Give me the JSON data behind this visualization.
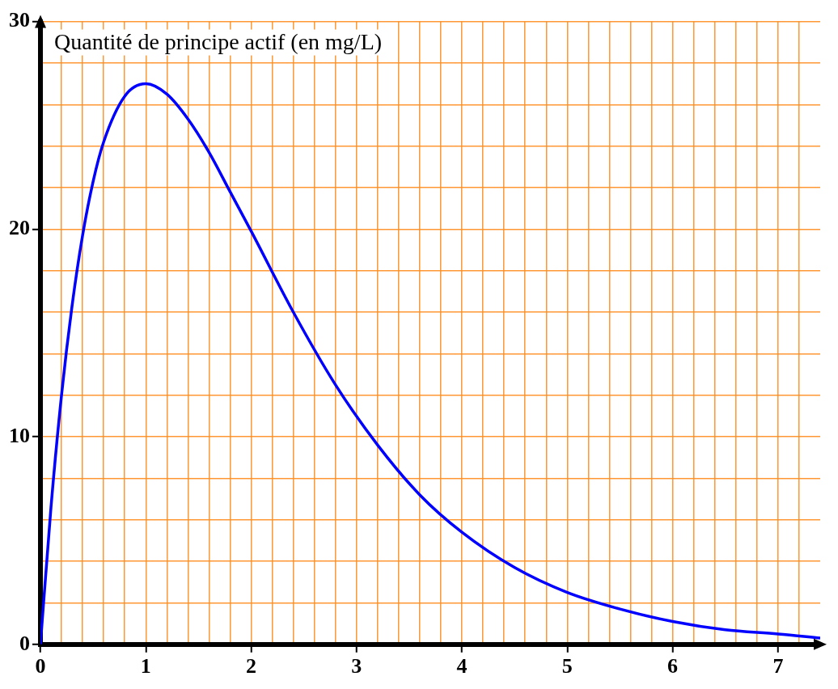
{
  "chart_data": {
    "type": "line",
    "ylabel": "Quantité de principe actif (en mg/L)",
    "x": [
      0,
      0.1,
      0.2,
      0.3,
      0.4,
      0.5,
      0.6,
      0.8,
      1,
      1.2,
      1.4,
      1.6,
      1.8,
      2,
      2.4,
      2.8,
      3.2,
      3.6,
      4,
      4.5,
      5,
      5.5,
      6,
      6.5,
      7,
      7.4
    ],
    "series": [
      {
        "color": "#0000ff",
        "values": [
          0,
          6.6,
          12,
          16.3,
          19.7,
          22.3,
          24.2,
          26.4,
          27,
          26.5,
          25.3,
          23.7,
          21.8,
          19.9,
          16,
          12.5,
          9.6,
          7.2,
          5.4,
          3.7,
          2.5,
          1.7,
          1.1,
          0.7,
          0.5,
          0.3
        ]
      }
    ],
    "xlim": [
      0,
      7.4
    ],
    "ylim": [
      0,
      30
    ],
    "xticks": [
      0,
      {
        "value": 0.2,
        "label": null
      },
      {
        "value": 0.4,
        "label": null
      },
      {
        "value": 0.6,
        "label": null
      },
      {
        "value": 0.8,
        "label": null
      },
      1,
      {
        "value": 1.2,
        "label": null
      },
      {
        "value": 1.4,
        "label": null
      },
      {
        "value": 1.6,
        "label": null
      },
      {
        "value": 1.8,
        "label": null
      },
      2,
      {
        "value": 2.2,
        "label": null
      },
      {
        "value": 2.4,
        "label": null
      },
      {
        "value": 2.6,
        "label": null
      },
      {
        "value": 2.8,
        "label": null
      },
      3,
      {
        "value": 3.2,
        "label": null
      },
      {
        "value": 3.4,
        "label": null
      },
      {
        "value": 3.6,
        "label": null
      },
      {
        "value": 3.8,
        "label": null
      },
      4,
      {
        "value": 4.2,
        "label": null
      },
      {
        "value": 4.4,
        "label": null
      },
      {
        "value": 4.6,
        "label": null
      },
      {
        "value": 4.8,
        "label": null
      },
      5,
      {
        "value": 5.2,
        "label": null
      },
      {
        "value": 5.4,
        "label": null
      },
      {
        "value": 5.6,
        "label": null
      },
      {
        "value": 5.8,
        "label": null
      },
      6,
      {
        "value": 6.2,
        "label": null
      },
      {
        "value": 6.4,
        "label": null
      },
      {
        "value": 6.6,
        "label": null
      },
      {
        "value": 6.8,
        "label": null
      },
      7,
      {
        "value": 7.2,
        "label": null
      }
    ],
    "yticks": [
      0,
      {
        "value": 2,
        "label": null
      },
      {
        "value": 4,
        "label": null
      },
      {
        "value": 6,
        "label": null
      },
      {
        "value": 8,
        "label": null
      },
      10,
      {
        "value": 12,
        "label": null
      },
      {
        "value": 14,
        "label": null
      },
      {
        "value": 16,
        "label": null
      },
      {
        "value": 18,
        "label": null
      },
      20,
      {
        "value": 22,
        "label": null
      },
      {
        "value": 24,
        "label": null
      },
      {
        "value": 26,
        "label": null
      },
      {
        "value": 28,
        "label": null
      },
      30
    ],
    "grid": true,
    "marker": "none",
    "line_style": "solid",
    "legend": false
  }
}
